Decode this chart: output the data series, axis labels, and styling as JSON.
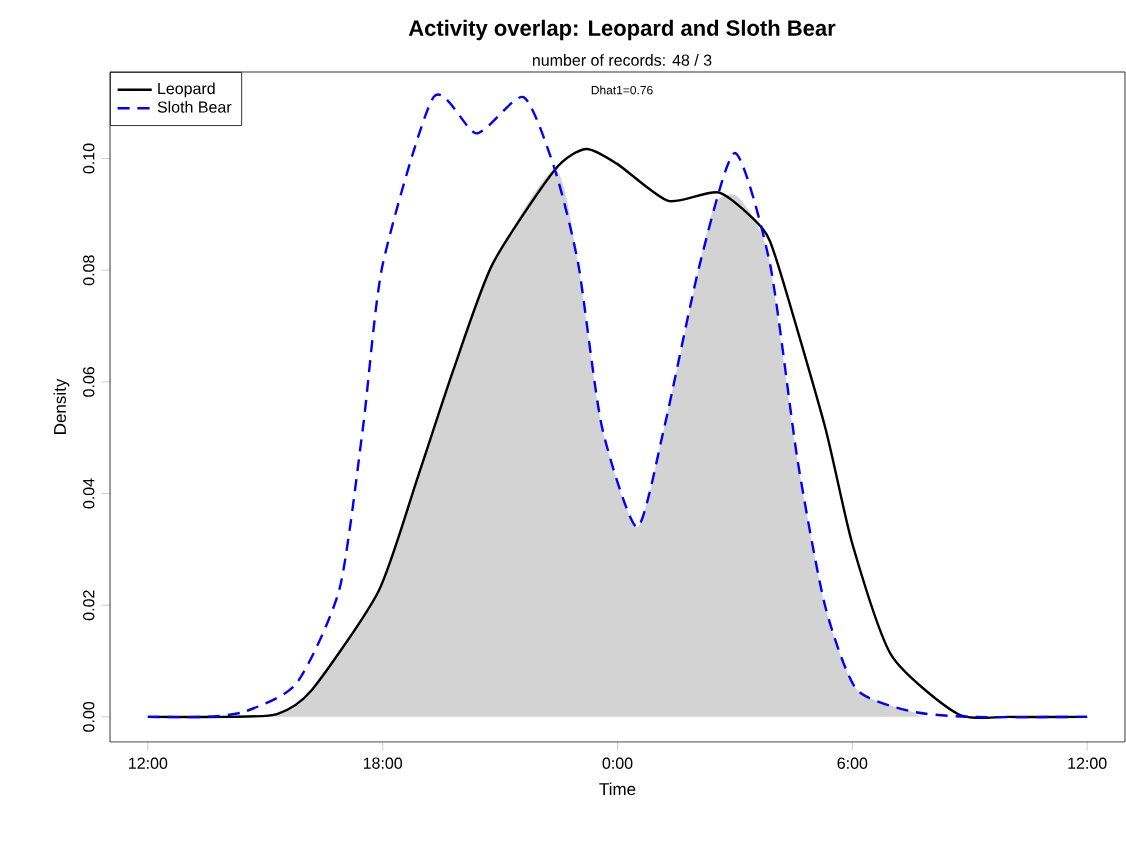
{
  "chart_data": {
    "type": "line",
    "title": "Activity overlap:  Leopard and Sloth Bear",
    "subtitle": "number of records: 48 / 3",
    "xlabel": "Time",
    "ylabel": "Density",
    "annotations": [
      "Dhat1=0.76"
    ],
    "xlim": [
      "2000-01-01T11:02",
      "2000-01-02T12:58"
    ],
    "ylim": [
      -0.0045,
      0.1155
    ],
    "xticks": [
      {
        "value": "2000-01-01T12:00",
        "label": "12:00"
      },
      {
        "value": "2000-01-01T18:00",
        "label": "18:00"
      },
      {
        "value": "2000-01-02T00:00",
        "label": "0:00"
      },
      {
        "value": "2000-01-02T06:00",
        "label": "6:00"
      },
      {
        "value": "2000-01-02T12:00",
        "label": "12:00"
      }
    ],
    "yticks": [
      {
        "value": 0,
        "label": "0.00"
      },
      {
        "value": 0.02,
        "label": "0.02"
      },
      {
        "value": 0.04,
        "label": "0.04"
      },
      {
        "value": 0.06,
        "label": "0.06"
      },
      {
        "value": 0.08,
        "label": "0.08"
      },
      {
        "value": 0.1,
        "label": "0.10"
      }
    ],
    "grid": false,
    "legend": "top left",
    "series": [
      {
        "type": "area",
        "color": "#d3d3d3",
        "x": [
          "2000-01-01T12:00",
          "2000-01-01T15:18",
          "2000-01-01T16:12",
          "2000-01-01T17:54",
          "2000-01-01T18:54",
          "2000-01-01T19:48",
          "2000-01-01T20:48",
          "2000-01-01T22:24",
          "2000-01-01T23:00",
          "2000-01-01T23:36",
          "2000-01-02T00:30",
          "2000-01-02T01:12",
          "2000-01-02T02:06",
          "2000-01-02T02:30",
          "2000-01-02T03:00",
          "2000-01-02T03:30",
          "2000-01-02T03:54",
          "2000-01-02T04:36",
          "2000-01-02T05:18",
          "2000-01-02T06:06",
          "2000-01-02T07:30",
          "2000-01-02T08:00",
          "2000-01-02T12:00"
        ],
        "values": [
          0,
          0.0005,
          0.0049,
          0.0226,
          0.043,
          0.062,
          0.081,
          0.098,
          0.081,
          0.052,
          0.034,
          0.052,
          0.081,
          0.092,
          0.0935,
          0.089,
          0.081,
          0.046,
          0.02,
          0.005,
          0.001,
          0,
          0
        ]
      },
      {
        "name": "Leopard",
        "color": "#000000",
        "line_style": "solid",
        "x": [
          "2000-01-01T12:00",
          "2000-01-01T14:00",
          "2000-01-01T15:18",
          "2000-01-01T16:12",
          "2000-01-01T17:54",
          "2000-01-01T18:54",
          "2000-01-01T19:48",
          "2000-01-01T20:48",
          "2000-01-01T22:24",
          "2000-01-01T23:12",
          "2000-01-02T00:00",
          "2000-01-02T01:18",
          "2000-01-02T02:36",
          "2000-01-02T03:42",
          "2000-01-02T04:06",
          "2000-01-02T05:18",
          "2000-01-02T06:00",
          "2000-01-02T07:00",
          "2000-01-02T08:42",
          "2000-01-02T10:00",
          "2000-01-02T12:00"
        ],
        "values": [
          0,
          0,
          0.0005,
          0.0049,
          0.0226,
          0.043,
          0.062,
          0.081,
          0.098,
          0.1017,
          0.099,
          0.0924,
          0.0939,
          0.0875,
          0.081,
          0.052,
          0.031,
          0.011,
          0.0005,
          0,
          0
        ]
      },
      {
        "name": "Sloth Bear",
        "color": "#0000ff",
        "line_style": "dashed",
        "x": [
          "2000-01-01T12:00",
          "2000-01-01T13:30",
          "2000-01-01T14:30",
          "2000-01-01T15:48",
          "2000-01-01T16:54",
          "2000-01-01T17:30",
          "2000-01-01T18:00",
          "2000-01-01T19:18",
          "2000-01-01T20:24",
          "2000-01-01T21:36",
          "2000-01-01T22:24",
          "2000-01-01T23:00",
          "2000-01-01T23:36",
          "2000-01-02T00:30",
          "2000-01-02T01:12",
          "2000-01-02T02:06",
          "2000-01-02T03:00",
          "2000-01-02T03:54",
          "2000-01-02T04:36",
          "2000-01-02T05:18",
          "2000-01-02T06:06",
          "2000-01-02T07:30",
          "2000-01-02T09:00",
          "2000-01-02T12:00"
        ],
        "values": [
          0,
          0,
          0.001,
          0.006,
          0.023,
          0.052,
          0.081,
          0.111,
          0.1045,
          0.111,
          0.098,
          0.081,
          0.052,
          0.034,
          0.052,
          0.081,
          0.101,
          0.081,
          0.046,
          0.02,
          0.005,
          0.001,
          0,
          0
        ]
      }
    ]
  }
}
